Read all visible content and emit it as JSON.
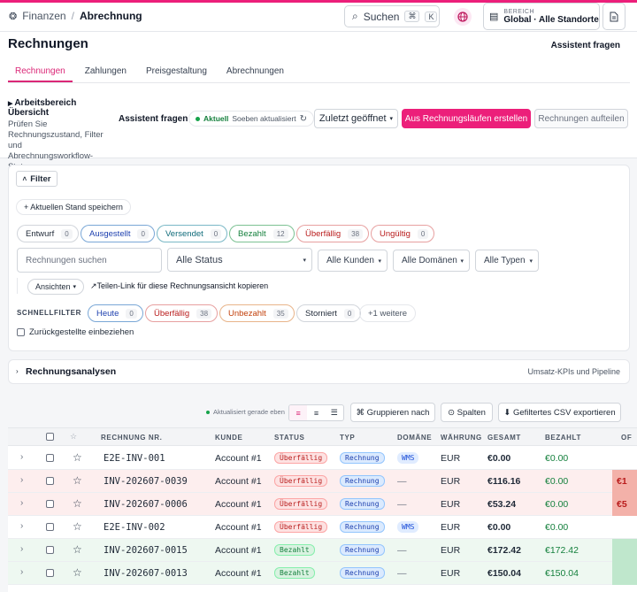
{
  "breadcrumb": {
    "section": "Finanzen",
    "separator": "/",
    "current": "Abrechnung"
  },
  "search": {
    "label": "Suchen",
    "kbd1": "⌘",
    "kbd2": "K"
  },
  "scope": {
    "label": "BEREICH",
    "value": "Global · Alle Standorte"
  },
  "page": {
    "title": "Rechnungen",
    "assistant_top": "Assistent fragen"
  },
  "tabs": [
    {
      "label": "Rechnungen",
      "active": true
    },
    {
      "label": "Zahlungen"
    },
    {
      "label": "Preisgestaltung"
    },
    {
      "label": "Abrechnungen"
    }
  ],
  "workspace": {
    "title": "Arbeitsbereich Übersicht",
    "desc": "Prüfen Sie Rechnungszustand, Filter und Abrechnungsworkflow-Status."
  },
  "actions": {
    "assistant": "Assistent fragen",
    "live_label": "Aktuell",
    "live_status": "Soeben aktualisiert",
    "recent": "Zuletzt geöffnet",
    "create": "Aus Rechnungsläufen erstellen",
    "split": "Rechnungen aufteilen"
  },
  "filter": {
    "toggle": "Filter",
    "save": "+ Aktuellen Stand speichern",
    "status_chips": [
      {
        "label": "Entwurf",
        "count": "0",
        "tone": "neutral"
      },
      {
        "label": "Ausgestellt",
        "count": "0",
        "tone": "blue"
      },
      {
        "label": "Versendet",
        "count": "0",
        "tone": "teal"
      },
      {
        "label": "Bezahlt",
        "count": "12",
        "tone": "green"
      },
      {
        "label": "Überfällig",
        "count": "38",
        "tone": "red"
      },
      {
        "label": "Ungültig",
        "count": "0",
        "tone": "red"
      }
    ],
    "search_placeholder": "Rechnungen suchen",
    "status_select": "Alle Status",
    "customer_select": "Alle Kunden",
    "domain_select": "Alle Domänen",
    "type_select": "Alle Typen",
    "views": "Ansichten",
    "share_link": "Teilen-Link für diese Rechnungsansicht kopieren",
    "quick_label": "SCHNELLFILTER",
    "quick_chips": [
      {
        "label": "Heute",
        "count": "0",
        "tone": "blue"
      },
      {
        "label": "Überfällig",
        "count": "38",
        "tone": "red"
      },
      {
        "label": "Unbezahlt",
        "count": "35",
        "tone": "orange"
      },
      {
        "label": "Storniert",
        "count": "0",
        "tone": "neutral"
      }
    ],
    "more": "+1 weitere",
    "include_archived": "Zurückgestellte einbeziehen"
  },
  "analytics": {
    "title": "Rechnungsanalysen",
    "subtitle": "Umsatz-KPIs und Pipeline"
  },
  "toolbar": {
    "updated": "Aktualisiert gerade eben",
    "group": "⌘ Gruppieren nach",
    "columns": "⊙ Spalten",
    "export": "⬇ Gefiltertes CSV exportieren"
  },
  "table": {
    "columns": [
      "RECHNUNG NR.",
      "KUNDE",
      "STATUS",
      "TYP",
      "DOMÄNE",
      "WÄHRUNG",
      "GESAMT",
      "BEZAHLT",
      "OF"
    ],
    "rows": [
      {
        "nr": "E2E-INV-001",
        "kunde": "Account #1",
        "status": "Überfällig",
        "typ": "Rechnung",
        "domain": "WMS",
        "waehrung": "EUR",
        "gesamt": "€0.00",
        "bezahlt": "€0.00",
        "offen": "",
        "tone": "white"
      },
      {
        "nr": "INV-202607-0039",
        "kunde": "Account #1",
        "status": "Überfällig",
        "typ": "Rechnung",
        "domain": "—",
        "waehrung": "EUR",
        "gesamt": "€116.16",
        "bezahlt": "€0.00",
        "offen": "€1",
        "tone": "red"
      },
      {
        "nr": "INV-202607-0006",
        "kunde": "Account #1",
        "status": "Überfällig",
        "typ": "Rechnung",
        "domain": "—",
        "waehrung": "EUR",
        "gesamt": "€53.24",
        "bezahlt": "€0.00",
        "offen": "€5",
        "tone": "red"
      },
      {
        "nr": "E2E-INV-002",
        "kunde": "Account #1",
        "status": "Überfällig",
        "typ": "Rechnung",
        "domain": "WMS",
        "waehrung": "EUR",
        "gesamt": "€0.00",
        "bezahlt": "€0.00",
        "offen": "",
        "tone": "white"
      },
      {
        "nr": "INV-202607-0015",
        "kunde": "Account #1",
        "status": "Bezahlt",
        "typ": "Rechnung",
        "domain": "—",
        "waehrung": "EUR",
        "gesamt": "€172.42",
        "bezahlt": "€172.42",
        "offen": "",
        "tone": "green"
      },
      {
        "nr": "INV-202607-0013",
        "kunde": "Account #1",
        "status": "Bezahlt",
        "typ": "Rechnung",
        "domain": "—",
        "waehrung": "EUR",
        "gesamt": "€150.04",
        "bezahlt": "€150.04",
        "offen": "",
        "tone": "green"
      }
    ]
  },
  "colors": {
    "accent": "#ec1f7a",
    "overdue": "#b91c1c",
    "paid": "#15803d"
  }
}
